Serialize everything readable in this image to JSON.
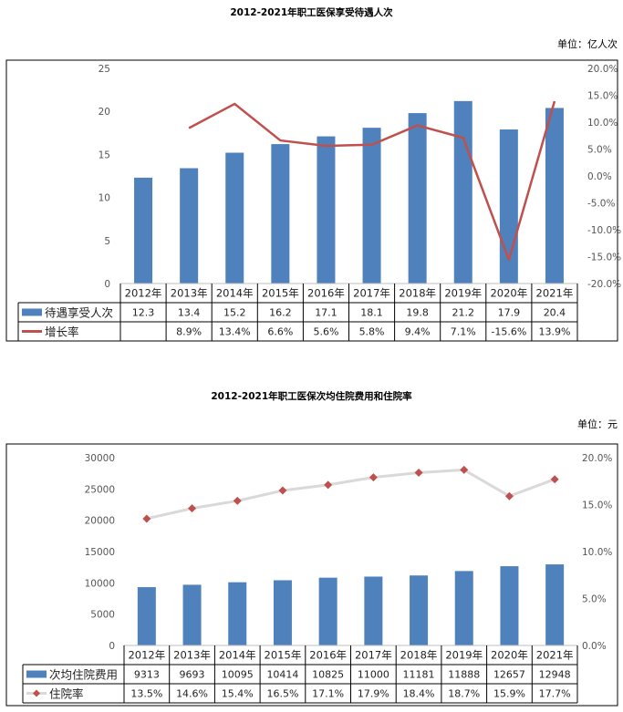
{
  "chart_data": [
    {
      "type": "bar",
      "title": "2012-2021年职工医保享受待遇人次",
      "unit": "单位：亿人次",
      "categories": [
        "2012年",
        "2013年",
        "2014年",
        "2015年",
        "2016年",
        "2017年",
        "2018年",
        "2019年",
        "2020年",
        "2021年"
      ],
      "ylim": [
        0,
        25
      ],
      "y_ticks": [
        "25",
        "20",
        "15",
        "10",
        "5",
        "0"
      ],
      "y2lim": [
        -20,
        20
      ],
      "y2_ticks": [
        "20.0%",
        "15.0%",
        "10.0%",
        "5.0%",
        "0.0%",
        "-5.0%",
        "-10.0%",
        "-15.0%",
        "-20.0%"
      ],
      "series": [
        {
          "name": "待遇享受人次",
          "kind": "bar",
          "axis": "left",
          "color": "#4f81bd",
          "values": [
            12.3,
            13.4,
            15.2,
            16.2,
            17.1,
            18.1,
            19.8,
            21.2,
            17.9,
            20.4
          ],
          "labels": [
            "12.3",
            "13.4",
            "15.2",
            "16.2",
            "17.1",
            "18.1",
            "19.8",
            "21.2",
            "17.9",
            "20.4"
          ]
        },
        {
          "name": "增长率",
          "kind": "line",
          "axis": "right",
          "color": "#c0504d",
          "values": [
            null,
            8.9,
            13.4,
            6.6,
            5.6,
            5.8,
            9.4,
            7.1,
            -15.6,
            13.9
          ],
          "labels": [
            "",
            "8.9%",
            "13.4%",
            "6.6%",
            "5.6%",
            "5.8%",
            "9.4%",
            "7.1%",
            "-15.6%",
            "13.9%"
          ]
        }
      ],
      "legend": "table-below"
    },
    {
      "type": "bar",
      "title": "2012-2021年职工医保次均住院费用和住院率",
      "unit": "单位：元",
      "categories": [
        "2012年",
        "2013年",
        "2014年",
        "2015年",
        "2016年",
        "2017年",
        "2018年",
        "2019年",
        "2020年",
        "2021年"
      ],
      "ylim": [
        0,
        30000
      ],
      "y_ticks": [
        "30000",
        "25000",
        "20000",
        "15000",
        "10000",
        "5000",
        "0"
      ],
      "y2lim": [
        0,
        20
      ],
      "y2_ticks": [
        "20.0%",
        "15.0%",
        "10.0%",
        "5.0%",
        "0.0%"
      ],
      "series": [
        {
          "name": "次均住院费用",
          "kind": "bar",
          "axis": "left",
          "color": "#4f81bd",
          "values": [
            9313,
            9693,
            10095,
            10414,
            10825,
            11000,
            11181,
            11888,
            12657,
            12948
          ],
          "labels": [
            "9313",
            "9693",
            "10095",
            "10414",
            "10825",
            "11000",
            "11181",
            "11888",
            "12657",
            "12948"
          ]
        },
        {
          "name": "住院率",
          "kind": "line-marker",
          "axis": "right",
          "color": "#d9d9d9",
          "marker_color": "#c0504d",
          "values": [
            13.5,
            14.6,
            15.4,
            16.5,
            17.1,
            17.9,
            18.4,
            18.7,
            15.9,
            17.7
          ],
          "labels": [
            "13.5%",
            "14.6%",
            "15.4%",
            "16.5%",
            "17.1%",
            "17.9%",
            "18.4%",
            "18.7%",
            "15.9%",
            "17.7%"
          ]
        }
      ],
      "legend": "table-below"
    }
  ]
}
